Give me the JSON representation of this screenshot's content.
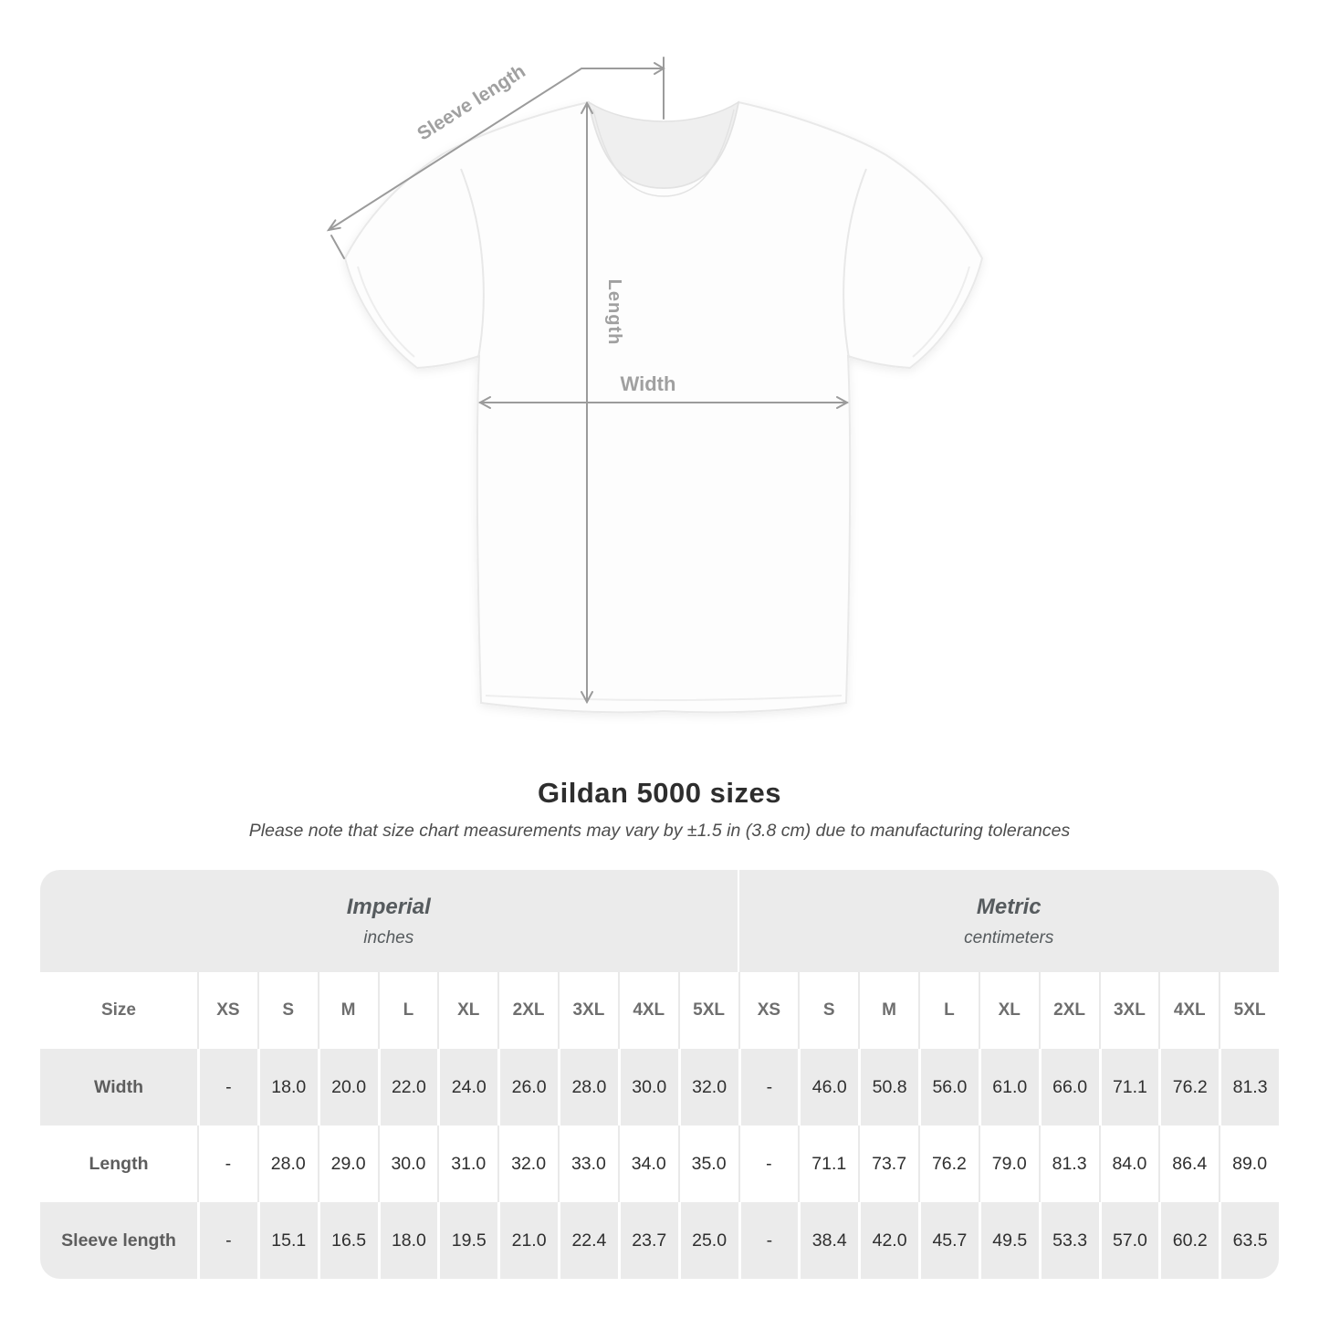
{
  "diagram": {
    "labels": {
      "sleeve_length": "Sleeve length",
      "length": "Length",
      "width": "Width"
    },
    "arrow_color": "#9b9b9b",
    "label_color": "#a0a0a0",
    "shirt_outline_color": "#e9e9e9"
  },
  "section": {
    "title": "Gildan 5000 sizes",
    "subtitle": "Please note that size chart measurements may vary by ±1.5 in (3.8 cm) due to manufacturing tolerances"
  },
  "table": {
    "unit_headers": [
      {
        "name": "Imperial",
        "unit": "inches"
      },
      {
        "name": "Metric",
        "unit": "centimeters"
      }
    ],
    "size_label": "Size",
    "sizes": [
      "XS",
      "S",
      "M",
      "L",
      "XL",
      "2XL",
      "3XL",
      "4XL",
      "5XL"
    ],
    "rows": [
      {
        "label": "Width",
        "imperial": [
          "-",
          "18.0",
          "20.0",
          "22.0",
          "24.0",
          "26.0",
          "28.0",
          "30.0",
          "32.0"
        ],
        "metric": [
          "-",
          "46.0",
          "50.8",
          "56.0",
          "61.0",
          "66.0",
          "71.1",
          "76.2",
          "81.3"
        ]
      },
      {
        "label": "Length",
        "imperial": [
          "-",
          "28.0",
          "29.0",
          "30.0",
          "31.0",
          "32.0",
          "33.0",
          "34.0",
          "35.0"
        ],
        "metric": [
          "-",
          "71.1",
          "73.7",
          "76.2",
          "79.0",
          "81.3",
          "84.0",
          "86.4",
          "89.0"
        ]
      },
      {
        "label": "Sleeve length",
        "imperial": [
          "-",
          "15.1",
          "16.5",
          "18.0",
          "19.5",
          "21.0",
          "22.4",
          "23.7",
          "25.0"
        ],
        "metric": [
          "-",
          "38.4",
          "42.0",
          "45.7",
          "49.5",
          "53.3",
          "57.0",
          "60.2",
          "63.5"
        ]
      }
    ],
    "colors": {
      "band_bg": "#ebebeb",
      "row_alt_bg": "#ebebeb",
      "header_text": "#6e6e6e",
      "value_text": "#2f2f2f"
    }
  }
}
